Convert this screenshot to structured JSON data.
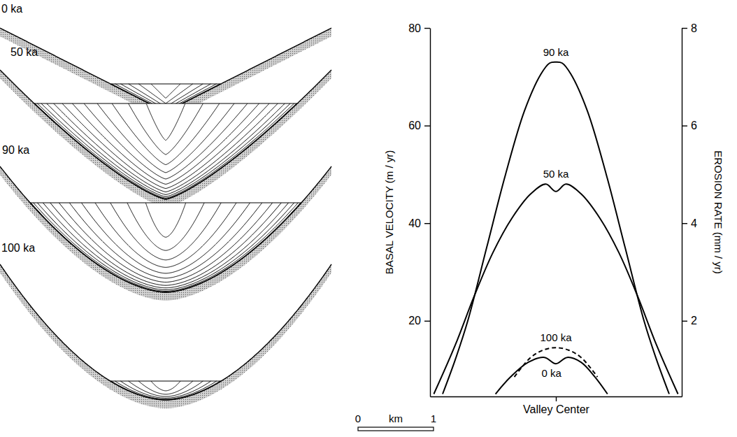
{
  "chart_data": {
    "type": "line",
    "ylabel": "BASAL VELOCITY (m / yr)",
    "y2label": "EROSION RATE (mm / yr)",
    "xlim": [
      -1,
      1
    ],
    "xticks": [
      {
        "value": 0,
        "label": "Valley Center"
      }
    ],
    "ylim": [
      4.5,
      80
    ],
    "yticks": [
      20,
      40,
      60,
      80
    ],
    "y2lim": [
      0.45,
      8
    ],
    "y2ticks": [
      2,
      4,
      6,
      8
    ],
    "series": [
      {
        "name": "90 ka",
        "color": "#000000",
        "line_style": "solid",
        "x": [
          -0.9,
          -0.8,
          -0.7,
          -0.55,
          -0.4,
          -0.25,
          -0.12,
          -0.05,
          0,
          0.05,
          0.12,
          0.25,
          0.4,
          0.55,
          0.7,
          0.8,
          0.9
        ],
        "values": [
          5,
          12,
          20,
          35,
          50,
          63,
          70.5,
          72.8,
          73,
          72.8,
          70.5,
          63,
          50,
          35,
          20,
          12,
          5
        ]
      },
      {
        "name": "50 ka",
        "color": "#000000",
        "line_style": "solid",
        "x": [
          -0.97,
          -0.8,
          -0.65,
          -0.5,
          -0.35,
          -0.2,
          -0.08,
          0,
          0.08,
          0.2,
          0.35,
          0.5,
          0.65,
          0.8,
          0.97
        ],
        "values": [
          5,
          15,
          25,
          34,
          41,
          46,
          48,
          46.5,
          48,
          46,
          41,
          34,
          25,
          15,
          5
        ]
      },
      {
        "name": "100 ka",
        "color": "#000000",
        "line_style": "dashed",
        "x": [
          -0.33,
          -0.2,
          -0.1,
          0,
          0.1,
          0.2,
          0.33
        ],
        "values": [
          8.5,
          12.5,
          14,
          14.5,
          14,
          12.5,
          8.5
        ]
      },
      {
        "name": "0 ka",
        "color": "#000000",
        "line_style": "solid",
        "x": [
          -0.48,
          -0.36,
          -0.22,
          -0.09,
          0,
          0.09,
          0.2,
          0.31,
          0.41
        ],
        "values": [
          5,
          8.5,
          11.5,
          12.5,
          11.2,
          12.5,
          11.5,
          8.5,
          5
        ]
      }
    ]
  },
  "cross_sections": [
    {
      "label": "0 ka"
    },
    {
      "label": "50 ka"
    },
    {
      "label": "90 ka"
    },
    {
      "label": "100 ka"
    }
  ],
  "scale_bar": {
    "ticks": [
      0,
      1
    ],
    "unit": "km"
  }
}
